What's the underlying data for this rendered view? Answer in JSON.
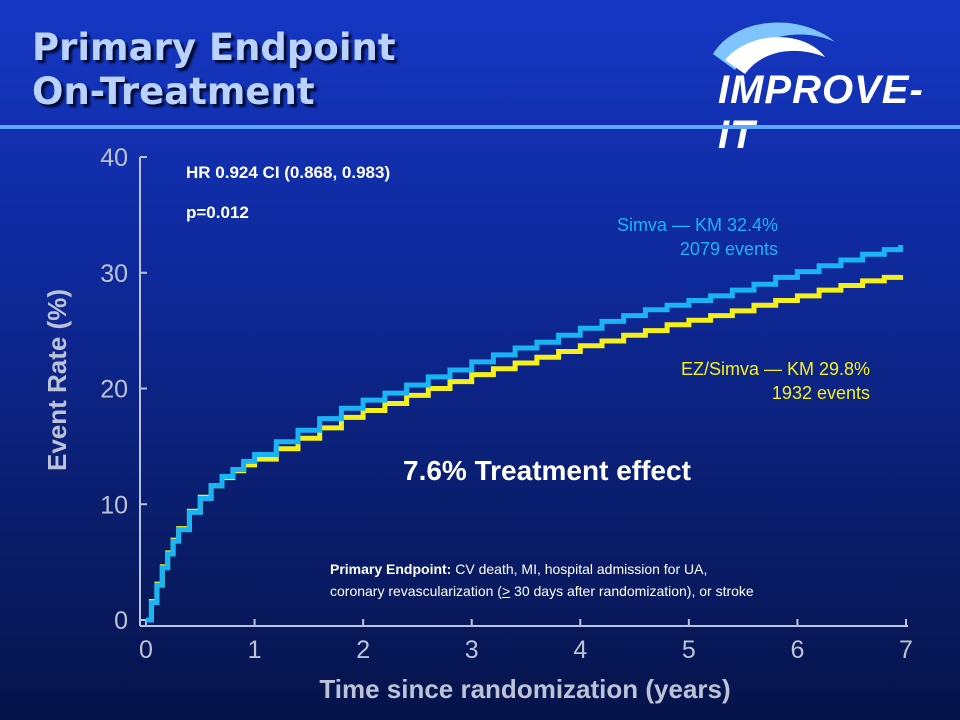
{
  "slide": {
    "title_line1": "Primary Endpoint",
    "title_line2": "On-Treatment",
    "logo_text": "IMPROVE-IT"
  },
  "stats": {
    "hr_ci": "HR 0.924 CI (0.868, 0.983)",
    "p_value": "p=0.012"
  },
  "labels": {
    "simva_name": "Simva — KM 32.4%",
    "simva_events": "2079 events",
    "ez_name": "EZ/Simva — KM 29.8%",
    "ez_events": "1932 events",
    "treatment_effect": "7.6% Treatment effect"
  },
  "endpoint_note": {
    "bold_part": "Primary Endpoint:",
    "line1_rest": " CV death, MI, hospital admission for UA,",
    "line2_start": "coronary revascularization (",
    "line2_ge": ">",
    "line2_end": " 30 days after randomization), or stroke"
  },
  "colors": {
    "simva": "#1ab4f5",
    "ez_simva": "#f5f01a",
    "axis_text": "#bcc3d6",
    "axis_line": "#b9c4dc",
    "rule": "#5fa6ff"
  },
  "chart_data": {
    "type": "line",
    "xlabel": "Time since randomization (years)",
    "ylabel": "Event Rate (%)",
    "xlim": [
      0,
      7
    ],
    "ylim": [
      0,
      40
    ],
    "x_ticks": [
      0,
      1,
      2,
      3,
      4,
      5,
      6,
      7
    ],
    "y_ticks": [
      0,
      10,
      20,
      30,
      40
    ],
    "grid": false,
    "series": [
      {
        "name": "Simva",
        "x": [
          0,
          0.05,
          0.1,
          0.15,
          0.2,
          0.25,
          0.3,
          0.4,
          0.5,
          0.6,
          0.7,
          0.8,
          0.9,
          1.0,
          1.2,
          1.4,
          1.6,
          1.8,
          2.0,
          2.2,
          2.4,
          2.6,
          2.8,
          3.0,
          3.2,
          3.4,
          3.6,
          3.8,
          4.0,
          4.2,
          4.4,
          4.6,
          4.8,
          5.0,
          5.2,
          5.4,
          5.6,
          5.8,
          6.0,
          6.2,
          6.4,
          6.6,
          6.8,
          6.95
        ],
        "y": [
          0,
          1.5,
          3,
          4.5,
          5.7,
          6.8,
          7.8,
          9.3,
          10.5,
          11.6,
          12.4,
          13.0,
          13.7,
          14.3,
          15.4,
          16.4,
          17.4,
          18.3,
          19.0,
          19.6,
          20.3,
          21.0,
          21.6,
          22.3,
          22.9,
          23.5,
          24.0,
          24.6,
          25.2,
          25.8,
          26.3,
          26.8,
          27.2,
          27.6,
          28.0,
          28.5,
          29.0,
          29.6,
          30.1,
          30.6,
          31.1,
          31.6,
          32.0,
          32.4
        ]
      },
      {
        "name": "EZ/Simva",
        "x": [
          0,
          0.05,
          0.1,
          0.15,
          0.2,
          0.25,
          0.3,
          0.4,
          0.5,
          0.6,
          0.7,
          0.8,
          0.9,
          1.0,
          1.2,
          1.4,
          1.6,
          1.8,
          2.0,
          2.2,
          2.4,
          2.6,
          2.8,
          3.0,
          3.2,
          3.4,
          3.6,
          3.8,
          4.0,
          4.2,
          4.4,
          4.6,
          4.8,
          5.0,
          5.2,
          5.4,
          5.6,
          5.8,
          6.0,
          6.2,
          6.4,
          6.6,
          6.8,
          6.95
        ],
        "y": [
          0,
          1.6,
          3.1,
          4.6,
          5.8,
          6.9,
          7.9,
          9.4,
          10.6,
          11.6,
          12.3,
          12.9,
          13.4,
          13.9,
          14.8,
          15.7,
          16.6,
          17.5,
          18.1,
          18.7,
          19.4,
          20.0,
          20.6,
          21.2,
          21.7,
          22.2,
          22.7,
          23.2,
          23.7,
          24.1,
          24.6,
          25.0,
          25.5,
          25.9,
          26.3,
          26.7,
          27.2,
          27.6,
          28.0,
          28.5,
          28.9,
          29.3,
          29.6,
          29.8
        ]
      }
    ]
  }
}
